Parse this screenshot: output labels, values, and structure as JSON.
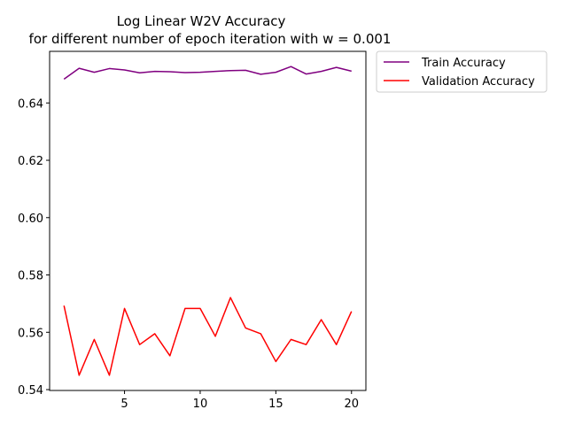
{
  "chart_data": {
    "type": "line",
    "title": "Log Linear W2V Accuracy",
    "subtitle": "for different number of epoch iteration with w = 0.001",
    "xlabel": "",
    "ylabel": "",
    "x": [
      1,
      2,
      3,
      4,
      5,
      6,
      7,
      8,
      9,
      10,
      11,
      12,
      13,
      14,
      15,
      16,
      17,
      18,
      19,
      20
    ],
    "xlim": [
      0.05,
      20.95
    ],
    "ylim": [
      0.5397,
      0.658
    ],
    "x_ticks": [
      5,
      10,
      15,
      20
    ],
    "y_ticks": [
      0.54,
      0.56,
      0.58,
      0.6,
      0.62,
      0.64
    ],
    "x_tick_labels": [
      "5",
      "10",
      "15",
      "20"
    ],
    "y_tick_labels": [
      "0.54",
      "0.56",
      "0.58",
      "0.60",
      "0.62",
      "0.64"
    ],
    "grid": false,
    "legend_position": "outside-top-right",
    "series": [
      {
        "name": "Train Accuracy",
        "color": "#800080",
        "values": [
          0.6483,
          0.6521,
          0.6507,
          0.652,
          0.6515,
          0.6505,
          0.651,
          0.6509,
          0.6506,
          0.6507,
          0.651,
          0.6513,
          0.6514,
          0.65,
          0.6507,
          0.6527,
          0.6501,
          0.651,
          0.6524,
          0.6511
        ]
      },
      {
        "name": "Validation Accuracy",
        "color": "#ff0000",
        "values": [
          0.5693,
          0.545,
          0.5575,
          0.545,
          0.5683,
          0.5557,
          0.5595,
          0.5518,
          0.5683,
          0.5683,
          0.5586,
          0.5721,
          0.5615,
          0.5595,
          0.5498,
          0.5575,
          0.5557,
          0.5644,
          0.5557,
          0.5673
        ]
      }
    ]
  }
}
